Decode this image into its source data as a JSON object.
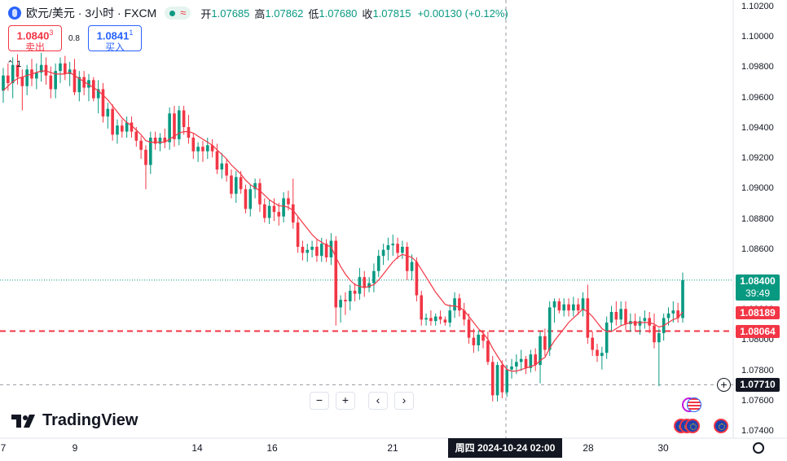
{
  "header": {
    "symbol": "欧元/美元 · 3小时 · FXCM",
    "open_label": "开",
    "open": "1.07685",
    "high_label": "高",
    "high": "1.07862",
    "low_label": "低",
    "low": "1.07680",
    "close_label": "收",
    "close": "1.07815",
    "change": "+0.00130 (+0.12%)"
  },
  "trade": {
    "sell_price": "1.0840",
    "sell_small": "3",
    "sell_label": "卖出",
    "buy_price": "1.0841",
    "buy_small": "1",
    "buy_label": "买入",
    "spread": "0.8"
  },
  "collapse_count": "1",
  "price_labels": {
    "current": "1.08400",
    "countdown": "39:49",
    "ma": "1.08189",
    "alert": "1.08064",
    "crosshair": "1.07710"
  },
  "crosshair_date": "周四 2024-10-24   02:00",
  "logo_text": "TradingView",
  "nav": {
    "zoom_out": "−",
    "zoom_in": "+",
    "prev": "‹",
    "next": "›"
  },
  "colors": {
    "up": "#089981",
    "down": "#f23645",
    "ma": "#f23645",
    "alert": "#f23645"
  },
  "chart_data": {
    "type": "candlestick",
    "y_axis_labels": [
      "1.10200",
      "1.10000",
      "1.09800",
      "1.09600",
      "1.09400",
      "1.09200",
      "1.09000",
      "1.08800",
      "1.08600",
      "1.08400",
      "1.08200",
      "1.08000",
      "1.07800",
      "1.07600",
      "1.07400"
    ],
    "ylim": [
      1.0737,
      1.1027
    ],
    "x_axis_labels": [
      "7",
      "9",
      "14",
      "16",
      "21",
      "28",
      "30"
    ],
    "current_price": 1.084,
    "ma_value": 1.08189,
    "alert_level": 1.08064,
    "crosshair_price": 1.0771,
    "candles": [
      [
        1.0965,
        1.098,
        1.0957,
        1.0975
      ],
      [
        1.0975,
        1.0983,
        1.0965,
        1.097
      ],
      [
        1.097,
        1.0987,
        1.096,
        1.0982
      ],
      [
        1.0982,
        1.0989,
        1.0969,
        1.0974
      ],
      [
        1.0974,
        1.0979,
        1.0952,
        1.0968
      ],
      [
        1.0968,
        1.0982,
        1.0962,
        1.0979
      ],
      [
        1.0979,
        1.0986,
        1.0968,
        1.0973
      ],
      [
        1.0973,
        1.0983,
        1.0966,
        1.0977
      ],
      [
        1.0977,
        1.099,
        1.0971,
        1.0982
      ],
      [
        1.0982,
        1.0987,
        1.0969,
        1.0975
      ],
      [
        1.0975,
        1.0981,
        1.096,
        1.0966
      ],
      [
        1.0966,
        1.0983,
        1.096,
        1.0978
      ],
      [
        1.0978,
        1.0987,
        1.097,
        1.0983
      ],
      [
        1.0983,
        1.0988,
        1.0972,
        1.0976
      ],
      [
        1.0976,
        1.0984,
        1.0968,
        1.0979
      ],
      [
        1.0979,
        1.0986,
        1.0962,
        1.0964
      ],
      [
        1.0964,
        1.0978,
        1.0958,
        1.0974
      ],
      [
        1.0974,
        1.0978,
        1.0962,
        1.0967
      ],
      [
        1.0967,
        1.0976,
        1.0958,
        1.0972
      ],
      [
        1.0972,
        1.0974,
        1.0958,
        1.096
      ],
      [
        1.096,
        1.0972,
        1.095,
        1.0966
      ],
      [
        1.0966,
        1.097,
        1.0944,
        1.0948
      ],
      [
        1.0948,
        1.0957,
        1.094,
        1.0953
      ],
      [
        1.0953,
        1.0956,
        1.0932,
        1.0936
      ],
      [
        1.0936,
        1.0946,
        1.093,
        1.0942
      ],
      [
        1.0942,
        1.0946,
        1.0934,
        1.0938
      ],
      [
        1.0938,
        1.0948,
        1.0934,
        1.0944
      ],
      [
        1.0944,
        1.0948,
        1.0934,
        1.0938
      ],
      [
        1.0938,
        1.0941,
        1.0928,
        1.0932
      ],
      [
        1.0932,
        1.0935,
        1.092,
        1.0926
      ],
      [
        1.0926,
        1.0929,
        1.09,
        1.0916
      ],
      [
        1.0916,
        1.0938,
        1.091,
        1.0934
      ],
      [
        1.0934,
        1.0938,
        1.0926,
        1.093
      ],
      [
        1.093,
        1.0937,
        1.0925,
        1.0934
      ],
      [
        1.0934,
        1.094,
        1.0927,
        1.0931
      ],
      [
        1.0931,
        1.0954,
        1.0926,
        1.095
      ],
      [
        1.095,
        1.0955,
        1.0928,
        1.0933
      ],
      [
        1.0933,
        1.0955,
        1.0929,
        1.0952
      ],
      [
        1.0952,
        1.0955,
        1.0936,
        1.0941
      ],
      [
        1.0941,
        1.0949,
        1.093,
        1.0934
      ],
      [
        1.0934,
        1.0937,
        1.092,
        1.0925
      ],
      [
        1.0925,
        1.0931,
        1.0918,
        1.0928
      ],
      [
        1.0928,
        1.0932,
        1.0918,
        1.0925
      ],
      [
        1.0925,
        1.0934,
        1.092,
        1.0929
      ],
      [
        1.0929,
        1.0933,
        1.0921,
        1.0925
      ],
      [
        1.0925,
        1.093,
        1.091,
        1.0913
      ],
      [
        1.0913,
        1.0924,
        1.0907,
        1.0917
      ],
      [
        1.0917,
        1.092,
        1.0905,
        1.0909
      ],
      [
        1.0909,
        1.0913,
        1.0894,
        1.0897
      ],
      [
        1.0897,
        1.0912,
        1.0891,
        1.0908
      ],
      [
        1.0908,
        1.0912,
        1.0897,
        1.09
      ],
      [
        1.09,
        1.0903,
        1.0884,
        1.0887
      ],
      [
        1.0887,
        1.0903,
        1.0882,
        1.09
      ],
      [
        1.09,
        1.0907,
        1.0894,
        1.0904
      ],
      [
        1.0904,
        1.0907,
        1.0885,
        1.089
      ],
      [
        1.089,
        1.0894,
        1.0878,
        1.0881
      ],
      [
        1.0881,
        1.0893,
        1.0877,
        1.0889
      ],
      [
        1.0889,
        1.0894,
        1.0879,
        1.0885
      ],
      [
        1.0885,
        1.0891,
        1.0876,
        1.0882
      ],
      [
        1.0882,
        1.0898,
        1.0878,
        1.0894
      ],
      [
        1.0894,
        1.0899,
        1.0886,
        1.089
      ],
      [
        1.089,
        1.0907,
        1.0874,
        1.0878
      ],
      [
        1.0878,
        1.0882,
        1.0858,
        1.0862
      ],
      [
        1.0862,
        1.0866,
        1.0853,
        1.0858
      ],
      [
        1.0858,
        1.0864,
        1.0852,
        1.086
      ],
      [
        1.086,
        1.0866,
        1.0855,
        1.0862
      ],
      [
        1.0862,
        1.0867,
        1.0852,
        1.0856
      ],
      [
        1.0856,
        1.0868,
        1.0852,
        1.0864
      ],
      [
        1.0864,
        1.0867,
        1.0852,
        1.0855
      ],
      [
        1.0855,
        1.0871,
        1.085,
        1.0866
      ],
      [
        1.0866,
        1.0869,
        1.081,
        1.0822
      ],
      [
        1.0822,
        1.083,
        1.0812,
        1.0827
      ],
      [
        1.0827,
        1.0832,
        1.0817,
        1.0826
      ],
      [
        1.0826,
        1.0837,
        1.082,
        1.0833
      ],
      [
        1.0833,
        1.0838,
        1.0826,
        1.0831
      ],
      [
        1.0831,
        1.0848,
        1.0827,
        1.0842
      ],
      [
        1.0842,
        1.0846,
        1.0829,
        1.0835
      ],
      [
        1.0835,
        1.0842,
        1.0832,
        1.0838
      ],
      [
        1.0838,
        1.0851,
        1.0832,
        1.0846
      ],
      [
        1.0846,
        1.086,
        1.0842,
        1.0856
      ],
      [
        1.0856,
        1.0864,
        1.085,
        1.086
      ],
      [
        1.086,
        1.0868,
        1.0853,
        1.0863
      ],
      [
        1.0863,
        1.087,
        1.0856,
        1.0864
      ],
      [
        1.0864,
        1.0868,
        1.0854,
        1.0858
      ],
      [
        1.0858,
        1.0866,
        1.0854,
        1.0862
      ],
      [
        1.0862,
        1.0865,
        1.084,
        1.0846
      ],
      [
        1.0846,
        1.0857,
        1.084,
        1.0852
      ],
      [
        1.0852,
        1.0855,
        1.0826,
        1.083
      ],
      [
        1.083,
        1.0833,
        1.081,
        1.0814
      ],
      [
        1.0814,
        1.0818,
        1.081,
        1.0815
      ],
      [
        1.0815,
        1.082,
        1.081,
        1.0813
      ],
      [
        1.0813,
        1.0818,
        1.081,
        1.0816
      ],
      [
        1.0816,
        1.082,
        1.0811,
        1.0814
      ],
      [
        1.0814,
        1.0816,
        1.081,
        1.0812
      ],
      [
        1.0812,
        1.0824,
        1.0809,
        1.082
      ],
      [
        1.082,
        1.0832,
        1.0815,
        1.0828
      ],
      [
        1.0828,
        1.0831,
        1.0816,
        1.082
      ],
      [
        1.082,
        1.0825,
        1.081,
        1.0814
      ],
      [
        1.0814,
        1.0818,
        1.0798,
        1.0802
      ],
      [
        1.0802,
        1.0808,
        1.0792,
        1.0797
      ],
      [
        1.0797,
        1.0807,
        1.0793,
        1.0804
      ],
      [
        1.0804,
        1.0806,
        1.0795,
        1.08
      ],
      [
        1.08,
        1.0806,
        1.0784,
        1.0786
      ],
      [
        1.0786,
        1.079,
        1.076,
        1.0764
      ],
      [
        1.0764,
        1.0786,
        1.076,
        1.0784
      ],
      [
        1.0784,
        1.0787,
        1.0762,
        1.0766
      ],
      [
        1.0766,
        1.0784,
        1.0763,
        1.0781
      ],
      [
        1.0781,
        1.0788,
        1.0775,
        1.0783
      ],
      [
        1.0783,
        1.0791,
        1.0778,
        1.0786
      ],
      [
        1.0786,
        1.0794,
        1.078,
        1.0788
      ],
      [
        1.0788,
        1.079,
        1.0778,
        1.0782
      ],
      [
        1.0782,
        1.0794,
        1.0779,
        1.0791
      ],
      [
        1.0791,
        1.0795,
        1.078,
        1.0784
      ],
      [
        1.0784,
        1.0806,
        1.0772,
        1.0803
      ],
      [
        1.0803,
        1.0808,
        1.079,
        1.0794
      ],
      [
        1.0794,
        1.0826,
        1.079,
        1.0822
      ],
      [
        1.0822,
        1.0828,
        1.0812,
        1.0826
      ],
      [
        1.0826,
        1.0828,
        1.0818,
        1.082
      ],
      [
        1.082,
        1.0828,
        1.0816,
        1.0824
      ],
      [
        1.0824,
        1.0828,
        1.0816,
        1.082
      ],
      [
        1.082,
        1.0829,
        1.0816,
        1.0824
      ],
      [
        1.0824,
        1.0828,
        1.0817,
        1.082
      ],
      [
        1.082,
        1.0832,
        1.0816,
        1.0828
      ],
      [
        1.0828,
        1.0837,
        1.0798,
        1.0802
      ],
      [
        1.0802,
        1.0806,
        1.079,
        1.0794
      ],
      [
        1.0794,
        1.0798,
        1.0786,
        1.079
      ],
      [
        1.079,
        1.0796,
        1.0781,
        1.0792
      ],
      [
        1.0792,
        1.0816,
        1.0788,
        1.0812
      ],
      [
        1.0812,
        1.0823,
        1.0806,
        1.0819
      ],
      [
        1.0819,
        1.0826,
        1.081,
        1.0814
      ],
      [
        1.0814,
        1.0826,
        1.081,
        1.0821
      ],
      [
        1.0821,
        1.0826,
        1.0807,
        1.0811
      ],
      [
        1.0811,
        1.0818,
        1.0806,
        1.0813
      ],
      [
        1.0813,
        1.0818,
        1.0806,
        1.081
      ],
      [
        1.081,
        1.0816,
        1.0804,
        1.0813
      ],
      [
        1.0813,
        1.082,
        1.0808,
        1.0815
      ],
      [
        1.0815,
        1.0819,
        1.0805,
        1.081
      ],
      [
        1.081,
        1.0818,
        1.0795,
        1.0799
      ],
      [
        1.0799,
        1.0808,
        1.077,
        1.0805
      ],
      [
        1.0805,
        1.0818,
        1.08,
        1.0815
      ],
      [
        1.0815,
        1.0822,
        1.081,
        1.0818
      ],
      [
        1.0818,
        1.0826,
        1.0812,
        1.082
      ],
      [
        1.082,
        1.0825,
        1.0812,
        1.0815
      ],
      [
        1.0815,
        1.0845,
        1.0812,
        1.084
      ]
    ],
    "ma_line": [
      1.0965,
      1.0968,
      1.0971,
      1.0973,
      1.0974,
      1.0975,
      1.0976,
      1.0977,
      1.0978,
      1.0978,
      1.0977,
      1.0976,
      1.0976,
      1.0976,
      1.0977,
      1.0975,
      1.0973,
      1.0971,
      1.0969,
      1.0967,
      1.0965,
      1.0962,
      1.0959,
      1.0955,
      1.0951,
      1.0947,
      1.0944,
      1.0942,
      1.0939,
      1.0936,
      1.0932,
      1.0931,
      1.0931,
      1.0931,
      1.0931,
      1.0933,
      1.0935,
      1.0937,
      1.0938,
      1.0938,
      1.0937,
      1.0935,
      1.0933,
      1.0931,
      1.0929,
      1.0926,
      1.0923,
      1.092,
      1.0916,
      1.0913,
      1.091,
      1.0906,
      1.0903,
      1.0901,
      1.0899,
      1.0896,
      1.0893,
      1.0891,
      1.0889,
      1.0889,
      1.0888,
      1.0886,
      1.0882,
      1.0878,
      1.0874,
      1.087,
      1.0867,
      1.0865,
      1.0863,
      1.0862,
      1.0855,
      1.0849,
      1.0844,
      1.084,
      1.0837,
      1.0836,
      1.0835,
      1.0836,
      1.0837,
      1.084,
      1.0844,
      1.0848,
      1.0852,
      1.0855,
      1.0857,
      1.0856,
      1.0855,
      1.0852,
      1.0847,
      1.0842,
      1.0837,
      1.0832,
      1.0828,
      1.0824,
      1.0823,
      1.0823,
      1.0822,
      1.082,
      1.0816,
      1.0812,
      1.0808,
      1.0805,
      1.0801,
      1.0795,
      1.079,
      1.0785,
      1.0781,
      1.078,
      1.078,
      1.0781,
      1.0782,
      1.0783,
      1.0784,
      1.0787,
      1.0789,
      1.0795,
      1.08,
      1.0804,
      1.0808,
      1.0812,
      1.0815,
      1.0818,
      1.0821,
      1.0819,
      1.0816,
      1.0812,
      1.0808,
      1.0806,
      1.0806,
      1.0808,
      1.081,
      1.0811,
      1.0812,
      1.0812,
      1.0812,
      1.0812,
      1.0812,
      1.0811,
      1.0809,
      1.081,
      1.0812,
      1.0814,
      1.0815,
      1.0819
    ]
  }
}
